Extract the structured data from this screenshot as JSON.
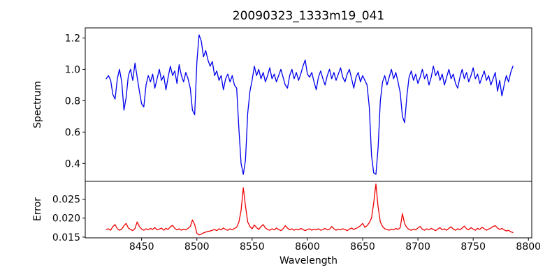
{
  "chart_data": {
    "type": "line",
    "title": "20090323_1333m19_041",
    "xlabel": "Wavelength",
    "xlim": [
      8399,
      8803
    ],
    "xticks": [
      8450,
      8500,
      8550,
      8600,
      8650,
      8700,
      8750,
      8800
    ],
    "xtick_labels": [
      "8450",
      "8500",
      "8550",
      "8600",
      "8650",
      "8700",
      "8750",
      "8800"
    ],
    "grid": false,
    "legend": "none",
    "panels": [
      {
        "ylabel": "Spectrum",
        "ylim": [
          0.2855,
          1.2645
        ],
        "yticks": [
          0.4,
          0.6,
          0.8,
          1.0,
          1.2
        ],
        "ytick_labels": [
          "0.4",
          "0.6",
          "0.8",
          "1.0",
          "1.2"
        ],
        "series": {
          "name": "spectrum",
          "color": "#0000ee",
          "x_start": 8418,
          "x_step": 2,
          "values": [
            0.94,
            0.96,
            0.93,
            0.84,
            0.81,
            0.94,
            1.0,
            0.92,
            0.74,
            0.82,
            0.96,
            1.0,
            0.93,
            1.04,
            0.95,
            0.86,
            0.78,
            0.76,
            0.9,
            0.96,
            0.92,
            0.97,
            0.88,
            0.94,
            1.0,
            0.93,
            0.96,
            0.87,
            0.95,
            1.02,
            0.96,
            0.99,
            0.91,
            1.03,
            0.96,
            0.92,
            0.98,
            0.94,
            0.88,
            0.74,
            0.71,
            1.05,
            1.22,
            1.18,
            1.08,
            1.12,
            1.06,
            1.02,
            1.05,
            0.96,
            0.99,
            0.93,
            0.96,
            0.87,
            0.94,
            0.97,
            0.92,
            0.96,
            0.9,
            0.88,
            0.62,
            0.4,
            0.33,
            0.42,
            0.72,
            0.86,
            0.93,
            1.02,
            0.96,
            1.0,
            0.94,
            0.98,
            0.92,
            0.96,
            1.01,
            0.94,
            0.97,
            0.92,
            0.96,
            1.0,
            0.95,
            0.9,
            0.88,
            0.96,
            1.0,
            0.94,
            0.98,
            0.93,
            0.97,
            1.02,
            1.06,
            0.97,
            0.95,
            0.98,
            0.92,
            0.87,
            0.95,
            0.99,
            0.94,
            0.9,
            0.96,
            1.0,
            0.94,
            0.98,
            0.93,
            0.97,
            1.01,
            0.95,
            0.92,
            0.97,
            1.0,
            0.94,
            0.88,
            0.95,
            0.98,
            0.92,
            0.96,
            0.93,
            0.9,
            0.76,
            0.45,
            0.34,
            0.33,
            0.5,
            0.8,
            0.92,
            0.96,
            0.9,
            0.95,
            1.0,
            0.94,
            0.98,
            0.92,
            0.85,
            0.7,
            0.66,
            0.83,
            0.95,
            0.99,
            0.93,
            0.97,
            0.91,
            0.95,
            1.0,
            0.94,
            0.97,
            0.9,
            0.95,
            1.02,
            0.96,
            0.99,
            0.93,
            0.97,
            0.9,
            0.95,
            1.0,
            0.94,
            0.97,
            0.91,
            0.88,
            0.95,
            1.0,
            0.94,
            0.98,
            0.92,
            0.96,
            1.01,
            0.94,
            0.97,
            0.91,
            0.95,
            0.99,
            0.93,
            0.96,
            0.9,
            0.94,
            0.98,
            0.86,
            0.93,
            0.83,
            0.9,
            0.96,
            0.92,
            0.98,
            1.02
          ]
        }
      },
      {
        "ylabel": "Error",
        "ylim": [
          0.0148,
          0.0297
        ],
        "yticks": [
          0.015,
          0.02,
          0.025
        ],
        "ytick_labels": [
          "0.015",
          "0.020",
          "0.025"
        ],
        "series": {
          "name": "error",
          "color": "#ee0000",
          "x_start": 8418,
          "x_step": 2,
          "values": [
            0.017,
            0.0172,
            0.0168,
            0.0178,
            0.0183,
            0.0172,
            0.0168,
            0.0171,
            0.018,
            0.0186,
            0.0174,
            0.017,
            0.0167,
            0.0173,
            0.019,
            0.0178,
            0.0171,
            0.0168,
            0.0172,
            0.0169,
            0.0173,
            0.017,
            0.0175,
            0.0169,
            0.0171,
            0.0174,
            0.0168,
            0.0173,
            0.017,
            0.0177,
            0.0181,
            0.0173,
            0.0169,
            0.0172,
            0.0168,
            0.0171,
            0.0169,
            0.0173,
            0.0178,
            0.0195,
            0.0183,
            0.016,
            0.0156,
            0.0158,
            0.0161,
            0.0163,
            0.0165,
            0.0166,
            0.0168,
            0.017,
            0.0167,
            0.0172,
            0.0169,
            0.0174,
            0.017,
            0.0168,
            0.0172,
            0.0169,
            0.0173,
            0.0176,
            0.019,
            0.022,
            0.028,
            0.0232,
            0.019,
            0.0178,
            0.0172,
            0.0182,
            0.0175,
            0.017,
            0.0178,
            0.0183,
            0.0174,
            0.017,
            0.0168,
            0.0172,
            0.0169,
            0.0174,
            0.017,
            0.0167,
            0.0172,
            0.018,
            0.0174,
            0.0169,
            0.0172,
            0.0168,
            0.0171,
            0.0169,
            0.0173,
            0.017,
            0.0167,
            0.017,
            0.0172,
            0.0168,
            0.0171,
            0.0169,
            0.0172,
            0.0168,
            0.017,
            0.0173,
            0.0169,
            0.0171,
            0.0178,
            0.0172,
            0.0168,
            0.0171,
            0.0169,
            0.0172,
            0.017,
            0.0167,
            0.0171,
            0.0174,
            0.017,
            0.0173,
            0.0176,
            0.018,
            0.0186,
            0.0176,
            0.018,
            0.0188,
            0.02,
            0.024,
            0.029,
            0.023,
            0.019,
            0.0178,
            0.0172,
            0.017,
            0.0168,
            0.0171,
            0.0169,
            0.0173,
            0.017,
            0.0175,
            0.0212,
            0.0185,
            0.0175,
            0.017,
            0.0168,
            0.0171,
            0.0169,
            0.0174,
            0.0178,
            0.0171,
            0.0168,
            0.0172,
            0.0169,
            0.0173,
            0.017,
            0.0167,
            0.0171,
            0.0175,
            0.0169,
            0.0172,
            0.0168,
            0.0173,
            0.0177,
            0.0171,
            0.0168,
            0.0172,
            0.0169,
            0.0174,
            0.0179,
            0.0172,
            0.0169,
            0.0175,
            0.0171,
            0.0168,
            0.0173,
            0.017,
            0.0176,
            0.0172,
            0.0168,
            0.0171,
            0.0174,
            0.0178,
            0.018,
            0.0174,
            0.017,
            0.0173,
            0.0169,
            0.0166,
            0.0168,
            0.0164,
            0.0162
          ]
        }
      }
    ]
  }
}
